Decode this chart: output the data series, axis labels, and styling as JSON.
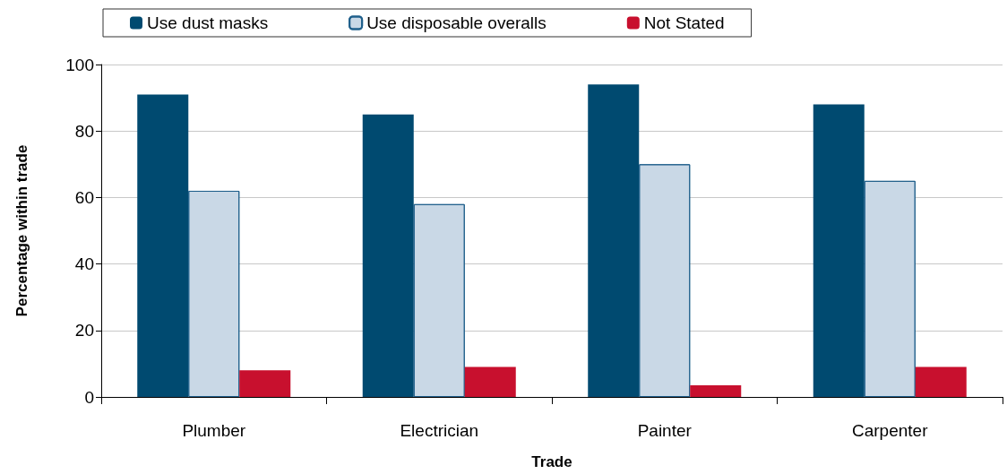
{
  "chart_data": {
    "type": "bar",
    "xlabel": "Trade",
    "ylabel": "Percentage within trade",
    "categories": [
      "Plumber",
      "Electrician",
      "Painter",
      "Carpenter"
    ],
    "series": [
      {
        "name": "Use dust masks",
        "color": "#004a70",
        "values": [
          91,
          85,
          94,
          88
        ]
      },
      {
        "name": "Use disposable overalls",
        "color": "#c9d8e6",
        "values": [
          62,
          58,
          70,
          65
        ]
      },
      {
        "name": "Not Stated",
        "color": "#c8102e",
        "values": [
          8,
          9,
          3.5,
          9
        ]
      }
    ],
    "ylim": [
      0,
      100
    ],
    "yticks": [
      0,
      20,
      40,
      60,
      80,
      100
    ],
    "grid": "y",
    "legend": "top"
  }
}
